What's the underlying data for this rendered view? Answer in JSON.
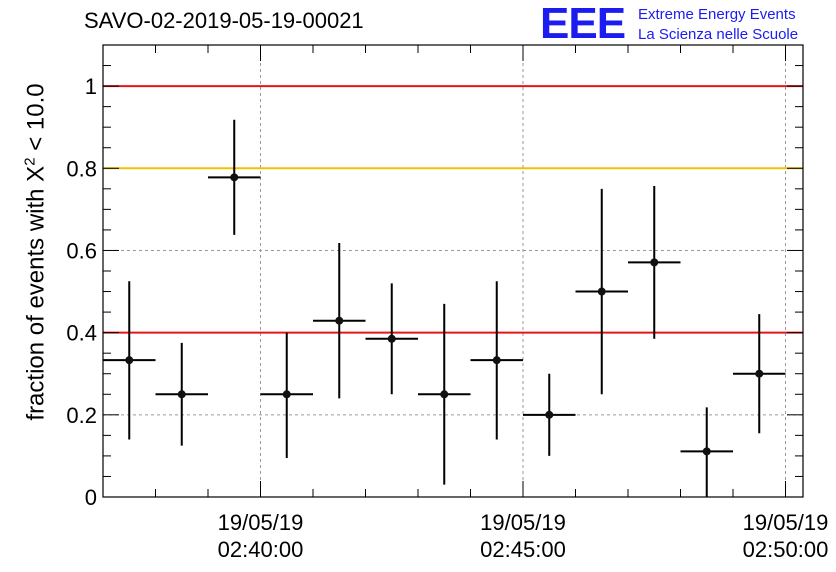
{
  "title": "SAVO-02-2019-05-19-00021",
  "logo": {
    "mark": "EEE",
    "line1": "Extreme Energy Events",
    "line2": "La Scienza nelle Scuole"
  },
  "chart_data": {
    "type": "scatter",
    "title": "SAVO-02-2019-05-19-00021",
    "ylabel_prefix": "fraction of events with X",
    "ylabel_sup": "2",
    "ylabel_suffix": " < 10.0",
    "xlabel": "",
    "x_unit": "time",
    "xlim": [
      "2019-05-19 02:37:00",
      "2019-05-19 02:50:20"
    ],
    "ylim": [
      0,
      1.1
    ],
    "yticks": [
      0,
      0.2,
      0.4,
      0.6,
      0.8,
      1
    ],
    "ytick_labels": [
      "0",
      "0.2",
      "0.4",
      "0.6",
      "0.8",
      "1"
    ],
    "xticks": [
      {
        "time": "2019-05-19 02:40:00",
        "date": "19/05/19",
        "clock": "02:40:00"
      },
      {
        "time": "2019-05-19 02:45:00",
        "date": "19/05/19",
        "clock": "02:45:00"
      },
      {
        "time": "2019-05-19 02:50:00",
        "date": "19/05/19",
        "clock": "02:50:00"
      }
    ],
    "grid": true,
    "reference_lines": [
      {
        "y": 1.0,
        "color": "#e8141c"
      },
      {
        "y": 0.8,
        "color": "#f5c000"
      },
      {
        "y": 0.4,
        "color": "#e8141c"
      }
    ],
    "series": [
      {
        "marker_color": "#111111",
        "points": [
          {
            "x": "2019-05-19 02:37:30",
            "y": 0.333,
            "y_low": 0.14,
            "y_high": 0.525
          },
          {
            "x": "2019-05-19 02:38:30",
            "y": 0.25,
            "y_low": 0.125,
            "y_high": 0.375
          },
          {
            "x": "2019-05-19 02:39:30",
            "y": 0.778,
            "y_low": 0.638,
            "y_high": 0.918
          },
          {
            "x": "2019-05-19 02:40:30",
            "y": 0.25,
            "y_low": 0.095,
            "y_high": 0.4
          },
          {
            "x": "2019-05-19 02:41:30",
            "y": 0.429,
            "y_low": 0.24,
            "y_high": 0.618
          },
          {
            "x": "2019-05-19 02:42:30",
            "y": 0.385,
            "y_low": 0.25,
            "y_high": 0.52
          },
          {
            "x": "2019-05-19 02:43:30",
            "y": 0.25,
            "y_low": 0.03,
            "y_high": 0.47
          },
          {
            "x": "2019-05-19 02:44:30",
            "y": 0.333,
            "y_low": 0.14,
            "y_high": 0.525
          },
          {
            "x": "2019-05-19 02:45:30",
            "y": 0.2,
            "y_low": 0.1,
            "y_high": 0.3
          },
          {
            "x": "2019-05-19 02:46:30",
            "y": 0.5,
            "y_low": 0.25,
            "y_high": 0.75
          },
          {
            "x": "2019-05-19 02:47:30",
            "y": 0.571,
            "y_low": 0.385,
            "y_high": 0.757
          },
          {
            "x": "2019-05-19 02:48:30",
            "y": 0.111,
            "y_low": 0.0,
            "y_high": 0.218
          },
          {
            "x": "2019-05-19 02:49:30",
            "y": 0.3,
            "y_low": 0.155,
            "y_high": 0.445
          }
        ]
      }
    ]
  }
}
